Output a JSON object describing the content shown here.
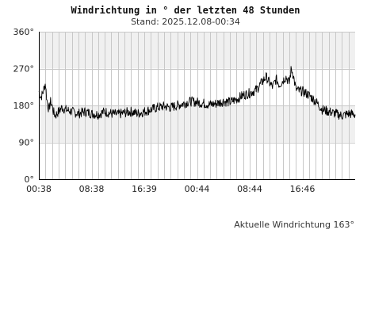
{
  "title": "Windrichtung in ° der letzten 48 Stunden",
  "subtitle": "Stand: 2025.12.08-00:34",
  "footer": "Aktuelle Windrichtung 163°",
  "colors": {
    "band": "#f0f0f0",
    "grid": "#c8c8c8",
    "line": "#000000",
    "axis": "#000000"
  },
  "chart_data": {
    "type": "line",
    "title": "Windrichtung in ° der letzten 48 Stunden",
    "xlabel": "",
    "ylabel": "",
    "xlim": [
      0,
      48
    ],
    "ylim": [
      0,
      360
    ],
    "yticks": [
      0,
      90,
      180,
      270,
      360
    ],
    "ytick_labels": [
      "0°",
      "90°",
      "180°",
      "270°",
      "360°"
    ],
    "xticks": [
      0,
      8,
      16,
      24,
      32,
      40
    ],
    "xtick_labels": [
      "00:38",
      "08:38",
      "16:39",
      "00:44",
      "08:44",
      "16:46"
    ],
    "grid": true,
    "shaded_bands": [
      [
        90,
        180
      ],
      [
        270,
        360
      ]
    ],
    "series": [
      {
        "x": [
          0,
          0.3,
          0.6,
          1.0,
          1.2,
          1.5,
          1.8,
          2.0,
          2.2,
          2.5,
          3.0,
          3.5,
          4.0,
          5.0,
          6.0,
          7.0,
          8.0,
          9.0,
          10.0,
          11.0,
          12.0,
          13.0,
          14.0,
          15.0,
          16.0,
          17.0,
          18.0,
          19.0,
          20.0,
          21.0,
          22.0,
          23.0,
          24.0,
          25.0,
          26.0,
          27.0,
          28.0,
          29.0,
          30.0,
          31.0,
          32.0,
          33.0,
          34.0,
          34.5,
          35.0,
          35.5,
          36.0,
          36.5,
          37.0,
          37.5,
          38.0,
          38.3,
          38.6,
          39.0,
          39.5,
          40.0,
          41.0,
          42.0,
          42.5,
          43.0,
          44.0,
          45.0,
          46.0,
          47.0,
          48.0
        ],
        "values": [
          215,
          200,
          210,
          235,
          195,
          170,
          190,
          180,
          165,
          155,
          165,
          175,
          170,
          165,
          160,
          165,
          160,
          158,
          165,
          160,
          158,
          162,
          165,
          160,
          165,
          170,
          175,
          178,
          175,
          180,
          185,
          190,
          188,
          185,
          182,
          185,
          190,
          188,
          195,
          205,
          210,
          218,
          240,
          250,
          235,
          225,
          245,
          230,
          240,
          250,
          235,
          270,
          255,
          220,
          215,
          215,
          205,
          190,
          180,
          170,
          165,
          160,
          155,
          160,
          158
        ]
      }
    ]
  }
}
